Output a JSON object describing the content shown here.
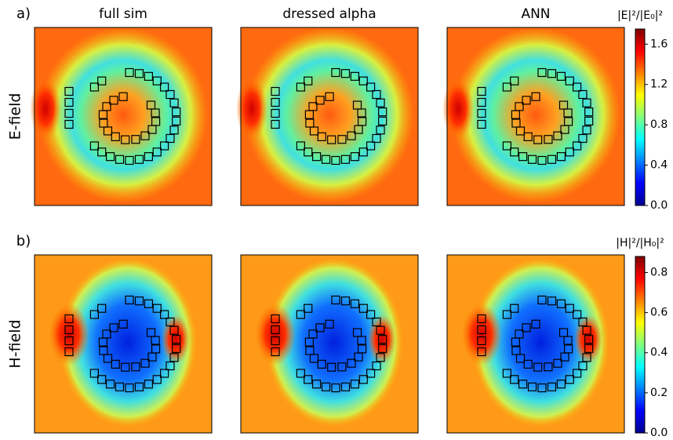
{
  "columns": [
    "full sim",
    "dressed alpha",
    "ANN"
  ],
  "rows": [
    {
      "panel": "a)",
      "field": "E-field",
      "colorbar": {
        "label": "|E|²/|E₀|²",
        "lim": [
          0,
          1.75
        ],
        "ticks": [
          {
            "value": 0,
            "label": "0.0"
          },
          0.4,
          0.8,
          1.2,
          1.6
        ]
      }
    },
    {
      "panel": "b)",
      "field": "H-field",
      "colorbar": {
        "label": "|H|²/|H₀|²",
        "lim": [
          0,
          0.88
        ],
        "ticks": [
          {
            "value": 0,
            "label": "0.0"
          },
          0.2,
          0.4,
          0.6,
          0.8
        ]
      }
    }
  ]
}
